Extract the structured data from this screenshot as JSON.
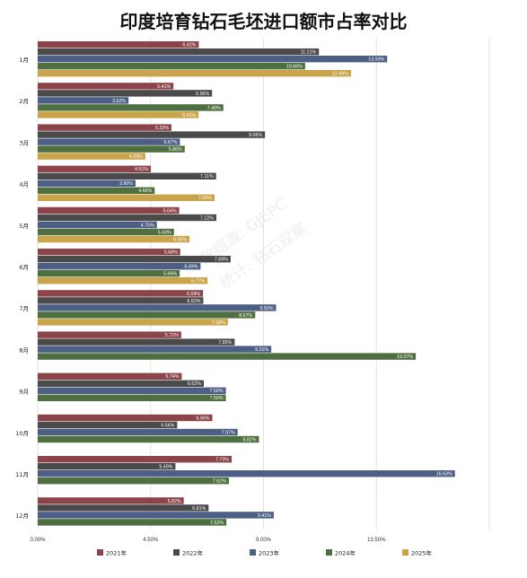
{
  "title": "印度培育钻石毛坯进口额市占率对比",
  "watermark": {
    "line1": "数据源: GJEPC",
    "line2": "统计: 钻石观察"
  },
  "chart_data": {
    "type": "bar",
    "orientation": "horizontal",
    "categories": [
      "1月",
      "2月",
      "3月",
      "4月",
      "5月",
      "6月",
      "7月",
      "8月",
      "9月",
      "10月",
      "11月",
      "12月"
    ],
    "xlim": [
      0,
      18
    ],
    "xticks": [
      {
        "value": 0,
        "label": "0.00%"
      },
      {
        "value": 4.5,
        "label": "4.50%"
      },
      {
        "value": 9,
        "label": "9.00%"
      },
      {
        "value": 13.5,
        "label": "13.50%"
      }
    ],
    "grid": true,
    "legend_position": "bottom",
    "series": [
      {
        "name": "2021年",
        "color": "#8b4449",
        "values": [
          6.42,
          5.41,
          5.33,
          4.51,
          5.64,
          5.68,
          6.59,
          5.72,
          5.74,
          6.96,
          7.73,
          5.82
        ],
        "labels": [
          "6.42%",
          "5.41%",
          "5.33%",
          "4.51%",
          "5.64%",
          "5.68%",
          "6.59%",
          "5.72%",
          "5.74%",
          "6.96%",
          "7.73%",
          "5.82%"
        ]
      },
      {
        "name": "2022年",
        "color": "#4a4a4a",
        "values": [
          11.21,
          6.95,
          9.06,
          7.11,
          7.12,
          7.69,
          6.6,
          7.85,
          6.62,
          5.56,
          5.49,
          6.81
        ],
        "labels": [
          "11.21%",
          "6.95%",
          "9.06%",
          "7.11%",
          "7.12%",
          "7.69%",
          "6.60%",
          "7.85%",
          "6.62%",
          "5.56%",
          "5.49%",
          "6.81%"
        ]
      },
      {
        "name": "2023年",
        "color": "#4d5f85",
        "values": [
          13.93,
          3.62,
          5.67,
          3.9,
          4.75,
          6.49,
          9.5,
          9.31,
          7.5,
          7.97,
          16.63,
          9.41
        ],
        "labels": [
          "13.93%",
          "3.62%",
          "5.67%",
          "3.90%",
          "4.75%",
          "6.49%",
          "9.50%",
          "9.31%",
          "7.50%",
          "7.97%",
          "16.63%",
          "9.41%"
        ]
      },
      {
        "name": "2024年",
        "color": "#4e6f3f",
        "values": [
          10.66,
          7.4,
          5.86,
          4.66,
          5.43,
          5.66,
          8.67,
          15.07,
          7.5,
          8.82,
          7.62,
          7.52
        ],
        "labels": [
          "10.66%",
          "7.40%",
          "5.86%",
          "4.66%",
          "5.43%",
          "5.66%",
          "8.67%",
          "15.07%",
          "7.50%",
          "8.82%",
          "7.62%",
          "7.52%"
        ]
      },
      {
        "name": "2025年",
        "color": "#c9a44a",
        "values": [
          12.49,
          6.41,
          4.29,
          7.05,
          6.05,
          6.77,
          7.58,
          null,
          null,
          null,
          null,
          null
        ],
        "labels": [
          "12.49%",
          "6.41%",
          "4.29%",
          "7.05%",
          "6.05%",
          "6.77%",
          "7.58%",
          "",
          "",
          "",
          "",
          ""
        ]
      }
    ]
  }
}
